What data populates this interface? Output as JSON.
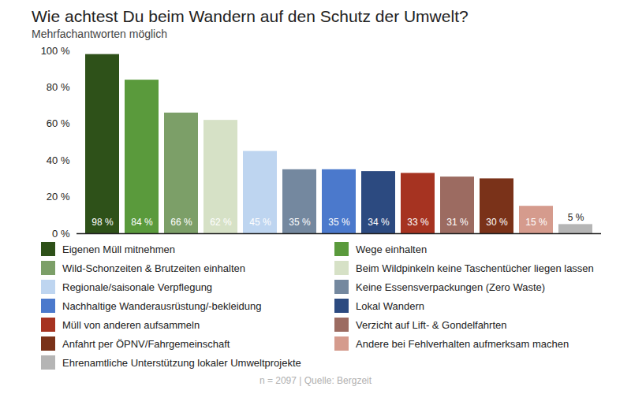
{
  "chart_data": {
    "type": "bar",
    "title": "Wie achtest Du beim Wandern auf den Schutz der Umwelt?",
    "subtitle": "Mehrfachantworten möglich",
    "caption": "n = 2097 | Quelle: Bergzeit",
    "categories": [
      "Eigenen Müll mitnehmen",
      "Wege einhalten",
      "Wild-Schonzeiten & Brutzeiten einhalten",
      "Beim Wildpinkeln keine Taschentücher liegen lassen",
      "Regionale/saisonale Verpflegung",
      "Keine Essensverpackungen (Zero Waste)",
      "Nachhaltige Wanderausrüstung/-bekleidung",
      "Lokal Wandern",
      "Müll von anderen aufsammeln",
      "Verzicht auf Lift- & Gondelfahrten",
      "Anfahrt per ÖPNV/Fahrgemeinschaft",
      "Andere bei Fehlverhalten aufmerksam machen",
      "Ehrenamtliche Unterstützung lokaler Umweltprojekte"
    ],
    "values": [
      98,
      84,
      66,
      62,
      45,
      35,
      35,
      34,
      33,
      31,
      30,
      15,
      5
    ],
    "value_labels": [
      "98 %",
      "84 %",
      "66 %",
      "62 %",
      "45 %",
      "35 %",
      "35 %",
      "34 %",
      "33 %",
      "31 %",
      "30 %",
      "15 %",
      "5 %"
    ],
    "colors": [
      "#2e5119",
      "#5a9a3c",
      "#7c9f68",
      "#d6e1c6",
      "#bed5f0",
      "#74889f",
      "#4b79cc",
      "#2c4a80",
      "#a63321",
      "#9c6b61",
      "#7a3219",
      "#d59b8d",
      "#b5b5b5"
    ],
    "ylim": [
      0,
      100
    ],
    "yticks": [
      {
        "value": 0,
        "label": "0 %"
      },
      {
        "value": 20,
        "label": "20 %"
      },
      {
        "value": 40,
        "label": "40 %"
      },
      {
        "value": 60,
        "label": "60 %"
      },
      {
        "value": 80,
        "label": "80 %"
      },
      {
        "value": 100,
        "label": "100 %"
      }
    ],
    "grid": false,
    "data_labels": true,
    "tick_labels": "y",
    "legend": "bottom"
  }
}
